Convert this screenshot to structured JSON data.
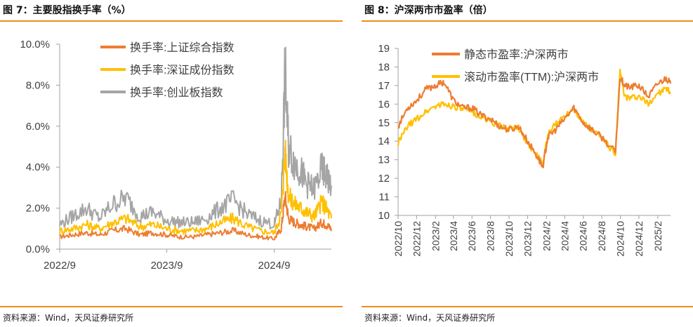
{
  "left": {
    "figure_title": "图 7：主要股指换手率（%）",
    "source": "资料来源：Wind，天风证券研究所"
  },
  "right": {
    "figure_title": "图 8：沪深两市市盈率（倍）",
    "source": "资料来源：Wind，天风证券研究所"
  },
  "colors": {
    "orange": "#ed7d31",
    "yellow": "#ffc000",
    "gray": "#a5a5a5",
    "rule": "#f08c1e"
  },
  "chart_data": [
    {
      "type": "line",
      "title": "",
      "xlabel": "",
      "ylabel": "",
      "y_tick_labels": [
        "0.0%",
        "2.0%",
        "4.0%",
        "6.0%",
        "8.0%",
        "10.0%"
      ],
      "ylim": [
        0,
        10
      ],
      "x_tick_labels": [
        "2022/9",
        "2023/9",
        "2024/9"
      ],
      "xlim": [
        "2022-09-01",
        "2025-03-15"
      ],
      "grid": false,
      "legend": "top-center",
      "x": [
        "2022-09-01",
        "2022-10-15",
        "2022-12-01",
        "2023-01-15",
        "2023-03-01",
        "2023-04-15",
        "2023-06-01",
        "2023-07-15",
        "2023-09-01",
        "2023-10-15",
        "2023-12-01",
        "2024-01-15",
        "2024-03-01",
        "2024-04-15",
        "2024-06-01",
        "2024-07-15",
        "2024-09-01",
        "2024-09-25",
        "2024-10-08",
        "2024-10-20",
        "2024-11-10",
        "2024-12-01",
        "2024-12-20",
        "2025-01-15",
        "2025-02-10",
        "2025-02-25",
        "2025-03-15"
      ],
      "series": [
        {
          "name": "换手率:上证综合指数",
          "values": [
            0.6,
            0.7,
            0.8,
            0.7,
            0.9,
            1.0,
            0.7,
            0.8,
            0.7,
            0.6,
            0.6,
            0.7,
            0.8,
            0.9,
            0.7,
            0.6,
            0.5,
            1.0,
            2.6,
            1.5,
            1.3,
            1.2,
            1.1,
            1.0,
            1.3,
            1.2,
            1.0
          ]
        },
        {
          "name": "换手率:深证成份指数",
          "values": [
            0.9,
            1.0,
            1.2,
            1.0,
            1.3,
            1.5,
            1.1,
            1.2,
            1.0,
            0.9,
            0.9,
            1.0,
            1.3,
            1.5,
            1.1,
            0.9,
            0.8,
            1.7,
            4.8,
            2.6,
            2.2,
            2.0,
            1.8,
            1.6,
            2.3,
            2.0,
            1.5
          ]
        },
        {
          "name": "换手率:创业板指数",
          "values": [
            1.2,
            1.6,
            2.0,
            1.5,
            2.2,
            2.5,
            1.6,
            1.8,
            1.4,
            1.3,
            1.3,
            1.5,
            2.0,
            2.4,
            1.7,
            1.4,
            1.2,
            2.3,
            8.6,
            5.0,
            4.2,
            3.8,
            3.2,
            2.9,
            3.9,
            3.6,
            3.1
          ]
        }
      ]
    },
    {
      "type": "line",
      "title": "",
      "xlabel": "",
      "ylabel": "",
      "y_tick_labels": [
        "10",
        "11",
        "12",
        "13",
        "14",
        "15",
        "16",
        "17",
        "18",
        "19"
      ],
      "ylim": [
        10,
        19
      ],
      "x_tick_labels": [
        "2022/10",
        "2022/12",
        "2023/2",
        "2023/4",
        "2023/6",
        "2023/8",
        "2023/10",
        "2023/12",
        "2024/2",
        "2024/4",
        "2024/6",
        "2024/8",
        "2024/10",
        "2024/12",
        "2025/2"
      ],
      "xlim": [
        "2022-10-01",
        "2025-03-15"
      ],
      "grid": false,
      "legend": "top-center",
      "x": [
        "2022-10-01",
        "2022-11-01",
        "2022-12-01",
        "2023-01-01",
        "2023-02-01",
        "2023-03-01",
        "2023-04-01",
        "2023-05-01",
        "2023-06-01",
        "2023-07-01",
        "2023-08-01",
        "2023-09-01",
        "2023-10-01",
        "2023-11-01",
        "2023-12-01",
        "2024-01-01",
        "2024-01-20",
        "2024-02-05",
        "2024-03-01",
        "2024-04-01",
        "2024-05-01",
        "2024-06-01",
        "2024-07-01",
        "2024-08-01",
        "2024-09-15",
        "2024-09-30",
        "2024-10-15",
        "2024-11-01",
        "2024-12-01",
        "2025-01-01",
        "2025-02-01",
        "2025-03-01",
        "2025-03-15"
      ],
      "series": [
        {
          "name": "静态市盈率:沪深两市",
          "values": [
            14.8,
            15.8,
            16.2,
            16.8,
            17.0,
            17.2,
            16.2,
            15.8,
            15.8,
            15.4,
            15.2,
            14.8,
            14.6,
            14.8,
            14.0,
            13.2,
            12.6,
            14.2,
            14.6,
            15.2,
            15.8,
            15.0,
            14.6,
            14.2,
            13.4,
            17.5,
            17.0,
            16.9,
            17.0,
            16.4,
            17.1,
            17.4,
            17.1
          ]
        },
        {
          "name": "滚动市盈率(TTM):沪深两市",
          "values": [
            13.9,
            14.8,
            15.2,
            15.6,
            15.9,
            16.0,
            15.9,
            15.7,
            15.6,
            15.3,
            15.1,
            14.8,
            14.7,
            14.7,
            13.9,
            13.2,
            12.8,
            14.3,
            14.9,
            15.4,
            15.8,
            15.0,
            14.6,
            14.2,
            13.3,
            17.8,
            16.4,
            16.3,
            16.4,
            16.0,
            16.6,
            16.8,
            16.6
          ]
        }
      ]
    }
  ]
}
